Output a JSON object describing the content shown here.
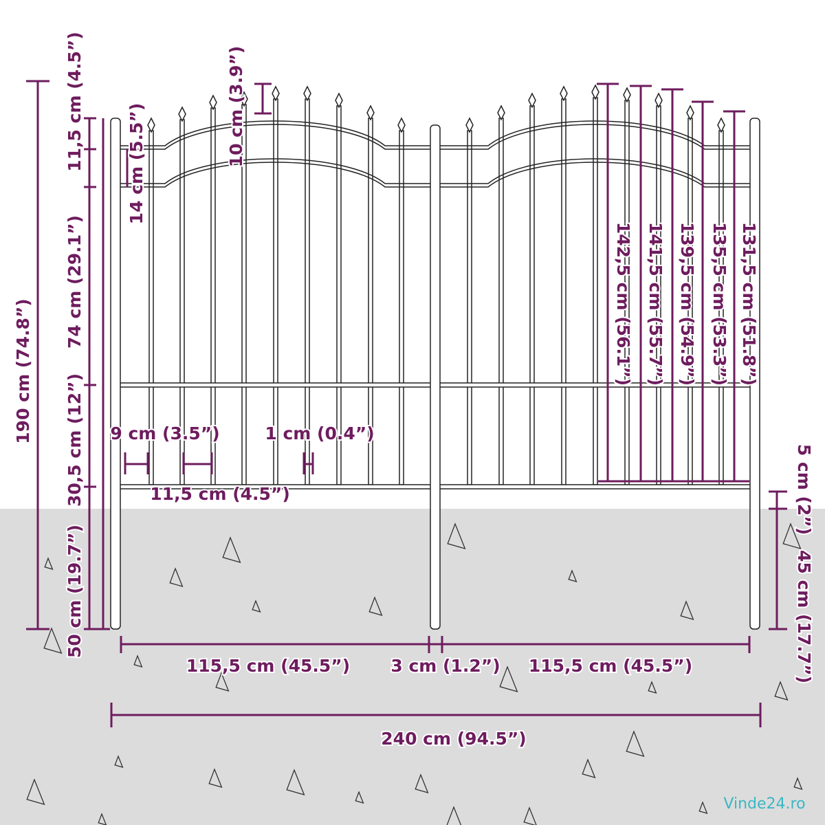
{
  "dimensions": {
    "total_height": "190 cm (74.8”)",
    "spike_top": "11,5 cm (4.5”)",
    "upper_rail_gap": "14 cm (5.5”)",
    "arch_rise": "10 cm (3.9”)",
    "middle_section": "74 cm (29.1”)",
    "lower_section": "30,5 cm (12”)",
    "post_in_ground": "50 cm (19.7”)",
    "picket_gap": "9 cm (3.5”)",
    "picket_width": "1 cm (0.4”)",
    "picket_spacing": "11,5 cm (4.5”)",
    "height_1": "142,5 cm (56.1”)",
    "height_2": "141,5 cm (55.7”)",
    "height_3": "139,5 cm (54.9”)",
    "height_4": "135,5 cm (53.3”)",
    "height_5": "131,5 cm (51.8”)",
    "ground_gap": "5 cm (2”)",
    "post_below_ground": "45 cm (17.7”)",
    "panel_left": "115,5 cm (45.5”)",
    "post_width": "3 cm (1.2”)",
    "panel_right": "115,5 cm (45.5”)",
    "total_width": "240 cm (94.5”)"
  },
  "watermark": "Vinde24.ro"
}
